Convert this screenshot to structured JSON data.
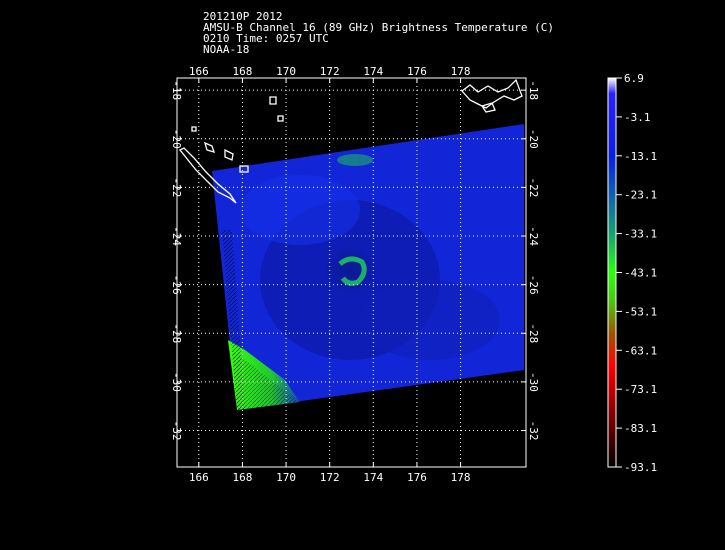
{
  "header": {
    "storm_id": "201210P 2012",
    "product": "AMSU-B Channel 16 (89 GHz) Brightness Temperature (C)",
    "time": "0210 Time: 0257 UTC",
    "satellite": "NOAA-18"
  },
  "map": {
    "lon_labels": [
      "166",
      "168",
      "170",
      "172",
      "174",
      "176",
      "178"
    ],
    "lat_labels": [
      "-18",
      "-20",
      "-22",
      "-24",
      "-26",
      "-28",
      "-30",
      "-32"
    ],
    "lon_range": [
      165,
      181
    ],
    "lat_range": [
      -17.5,
      -33.5
    ]
  },
  "colorbar": {
    "labels": [
      "6.9",
      "-3.1",
      "-13.1",
      "-23.1",
      "-33.1",
      "-43.1",
      "-53.1",
      "-63.1",
      "-73.1",
      "-83.1",
      "-93.1"
    ],
    "colors": [
      "#ffffff",
      "#1a14ff",
      "#0a28cc",
      "#1060b0",
      "#18a070",
      "#28ff10",
      "#60b010",
      "#c04000",
      "#ff0000",
      "#800000",
      "#000000"
    ]
  }
}
